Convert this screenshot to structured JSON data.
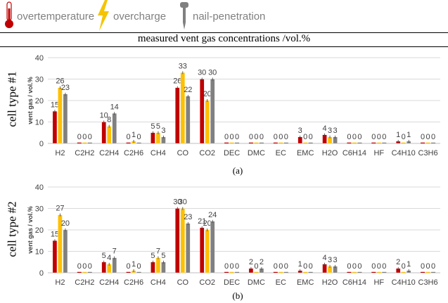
{
  "legend": {
    "items": [
      {
        "label": "overtemperature",
        "icon": "thermometer-icon",
        "color": "#c00000"
      },
      {
        "label": "overcharge",
        "icon": "lightning-bolt-icon",
        "color": "#f5c400"
      },
      {
        "label": "nail-penetration",
        "icon": "nail-icon",
        "color": "#808080"
      }
    ]
  },
  "main_title": "measured vent gas concentrations /vol.%",
  "colors": {
    "overtemperature": "#c00000",
    "overcharge": "#ffc000",
    "nail": "#808080"
  },
  "panels": [
    {
      "side_label": "cell type #1",
      "sub_label": "(a)"
    },
    {
      "side_label": "cell type #2",
      "sub_label": "(b)"
    }
  ],
  "chart_data": [
    {
      "type": "bar",
      "title": "cell type #1",
      "ylabel": "vent gas / vol.%",
      "ylim": [
        0,
        40
      ],
      "yticks": [
        0,
        10,
        20,
        30,
        40
      ],
      "categories": [
        "H2",
        "C2H2",
        "C2H4",
        "C2H6",
        "CH4",
        "CO",
        "CO2",
        "DEC",
        "DMC",
        "EC",
        "EMC",
        "H2O",
        "C6H14",
        "HF",
        "C4H10",
        "C3H6"
      ],
      "series": [
        {
          "name": "overtemperature",
          "values": [
            15,
            0,
            10,
            0,
            5,
            26,
            30,
            0,
            0,
            0,
            3,
            4,
            0,
            0,
            1,
            0
          ],
          "labels": [
            "15",
            "0",
            "10",
            "0",
            "5",
            "26",
            "30",
            "0",
            "0",
            "0",
            "3",
            "4",
            "0",
            "0",
            "1",
            "0"
          ]
        },
        {
          "name": "overcharge",
          "values": [
            26,
            0,
            8,
            1,
            5,
            33,
            20,
            0,
            0,
            0,
            0,
            3,
            0,
            0,
            0,
            0
          ],
          "labels": [
            "26",
            "0",
            "8",
            "1",
            "5",
            "33",
            "20",
            "0",
            "0",
            "0",
            "0",
            "3",
            "0",
            "0",
            "0",
            "0"
          ]
        },
        {
          "name": "nail-penetration",
          "values": [
            23,
            0,
            14,
            0,
            3,
            22,
            30,
            0,
            0,
            0,
            0,
            3,
            0,
            0,
            1,
            0
          ],
          "labels": [
            "23",
            "0",
            "14",
            "0",
            "3",
            "22",
            "30",
            "0",
            "0",
            "0",
            "0",
            "3",
            "0",
            "0",
            "1",
            "0"
          ]
        }
      ]
    },
    {
      "type": "bar",
      "title": "cell type #2",
      "ylabel": "vent gas / vol.%",
      "ylim": [
        0,
        40
      ],
      "yticks": [
        0,
        10,
        20,
        30,
        40
      ],
      "categories": [
        "H2",
        "C2H2",
        "C2H4",
        "C2H6",
        "CH4",
        "CO",
        "CO2",
        "DEC",
        "DMC",
        "EC",
        "EMC",
        "H2O",
        "C6H14",
        "HF",
        "C4H10",
        "C3H6"
      ],
      "series": [
        {
          "name": "overtemperature",
          "values": [
            15,
            0,
            5,
            0,
            5,
            30,
            21,
            0,
            2,
            0,
            1,
            4,
            0,
            0,
            2,
            0
          ],
          "labels": [
            "15",
            "0",
            "5",
            "0",
            "5",
            "30",
            "21",
            "0",
            "2",
            "0",
            "1",
            "4",
            "0",
            "0",
            "2",
            "0"
          ]
        },
        {
          "name": "overcharge",
          "values": [
            27,
            0,
            4,
            1,
            7,
            30,
            20,
            0,
            0,
            0,
            0,
            3,
            0,
            0,
            0,
            0
          ],
          "labels": [
            "27",
            "0",
            "4",
            "1",
            "7",
            "30",
            "20",
            "0",
            "0",
            "0",
            "0",
            "3",
            "0",
            "0",
            "0",
            "0"
          ]
        },
        {
          "name": "nail-penetration",
          "values": [
            20,
            0,
            7,
            0,
            5,
            23,
            24,
            0,
            2,
            0,
            0,
            3,
            0,
            0,
            1,
            0
          ],
          "labels": [
            "20",
            "0",
            "7",
            "0",
            "5",
            "23",
            "24",
            "0",
            "2",
            "0",
            "0",
            "3",
            "0",
            "0",
            "1",
            "0"
          ]
        }
      ]
    }
  ]
}
